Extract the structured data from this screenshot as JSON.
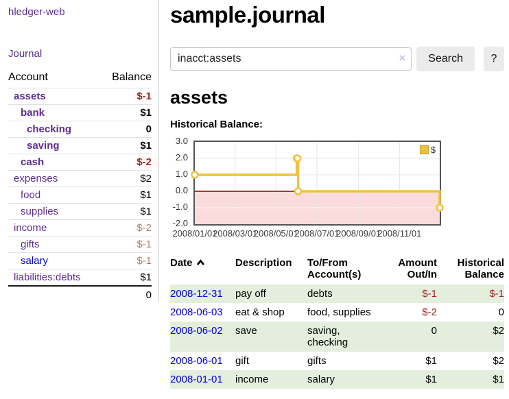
{
  "app": {
    "brand": "hledger-web"
  },
  "nav": {
    "journal": "Journal"
  },
  "colors": {
    "link_purple": "#5c2d91",
    "link_blue": "#0000ee",
    "negative_red": "#a22222",
    "faded_negative": "#b87a7a",
    "row_stripe_green": "#e3eedd",
    "chart_series_gold": "#edc240",
    "chart_negative_region": "#fbdcdc",
    "chart_zero_line": "#8b0000",
    "chart_border": "#545454",
    "button_gray": "#ebebeb"
  },
  "sidebar": {
    "header": {
      "account": "Account",
      "balance": "Balance"
    },
    "accounts": [
      {
        "name": "assets",
        "balance": "$-1"
      },
      {
        "name": "bank",
        "balance": "$1"
      },
      {
        "name": "checking",
        "balance": "0"
      },
      {
        "name": "saving",
        "balance": "$1"
      },
      {
        "name": "cash",
        "balance": "$-2"
      },
      {
        "name": "expenses",
        "balance": "$2"
      },
      {
        "name": "food",
        "balance": "$1"
      },
      {
        "name": "supplies",
        "balance": "$1"
      },
      {
        "name": "income",
        "balance": "$-2"
      },
      {
        "name": "gifts",
        "balance": "$-1"
      },
      {
        "name": "salary",
        "balance": "$-1"
      },
      {
        "name": "liabilities:debts",
        "balance": "$1"
      }
    ],
    "total": "0"
  },
  "header": {
    "title": "sample.journal"
  },
  "search": {
    "value": "inacct:assets",
    "clear_icon": "×",
    "search_button": "Search",
    "help_button": "?"
  },
  "account_page": {
    "title": "assets",
    "section_label": "Historical Balance:"
  },
  "chart_data": {
    "type": "line",
    "step": true,
    "title": "Historical Balance",
    "series": [
      {
        "name": "$",
        "color": "#edc240",
        "points": [
          [
            "2008-01-01",
            1
          ],
          [
            "2008-06-01",
            2
          ],
          [
            "2008-06-02",
            2
          ],
          [
            "2008-06-03",
            0
          ],
          [
            "2008-12-31",
            -1
          ]
        ]
      }
    ],
    "x_range": [
      "2008-01-01",
      "2008-12-31"
    ],
    "ylim": [
      -2,
      3
    ],
    "yticks": [
      {
        "v": 3,
        "label": "3.0"
      },
      {
        "v": 2,
        "label": "2.0"
      },
      {
        "v": 1,
        "label": "1.0"
      },
      {
        "v": 0,
        "label": "0.0"
      },
      {
        "v": -1,
        "label": "-1.0"
      },
      {
        "v": -2,
        "label": "-2.0"
      }
    ],
    "xticks": [
      {
        "date": "2008-01-01",
        "label": "2008/01/01"
      },
      {
        "date": "2008-03-01",
        "label": "2008/03/01"
      },
      {
        "date": "2008-05-01",
        "label": "2008/05/01"
      },
      {
        "date": "2008-07-01",
        "label": "2008/07/01"
      },
      {
        "date": "2008-09-01",
        "label": "2008/09/01"
      },
      {
        "date": "2008-11-01",
        "label": "2008/11/01"
      }
    ],
    "grid": true,
    "negative_region_color": "#fbdcdc",
    "zero_line_color": "#8b0000",
    "legend": {
      "position": "top-right",
      "label": "$"
    }
  },
  "register": {
    "headers": {
      "date": "Date",
      "description": "Description",
      "tofrom": "To/From Account(s)",
      "amount": "Amount Out/In",
      "balance": "Historical Balance"
    },
    "rows": [
      {
        "date": "2008-12-31",
        "description": "pay off",
        "tofrom": "debts",
        "amount": "$-1",
        "balance": "$-1"
      },
      {
        "date": "2008-06-03",
        "description": "eat & shop",
        "tofrom": "food, supplies",
        "amount": "$-2",
        "balance": "0"
      },
      {
        "date": "2008-06-02",
        "description": "save",
        "tofrom": "saving, checking",
        "amount": "0",
        "balance": "$2"
      },
      {
        "date": "2008-06-01",
        "description": "gift",
        "tofrom": "gifts",
        "amount": "$1",
        "balance": "$2"
      },
      {
        "date": "2008-01-01",
        "description": "income",
        "tofrom": "salary",
        "amount": "$1",
        "balance": "$1"
      }
    ]
  }
}
